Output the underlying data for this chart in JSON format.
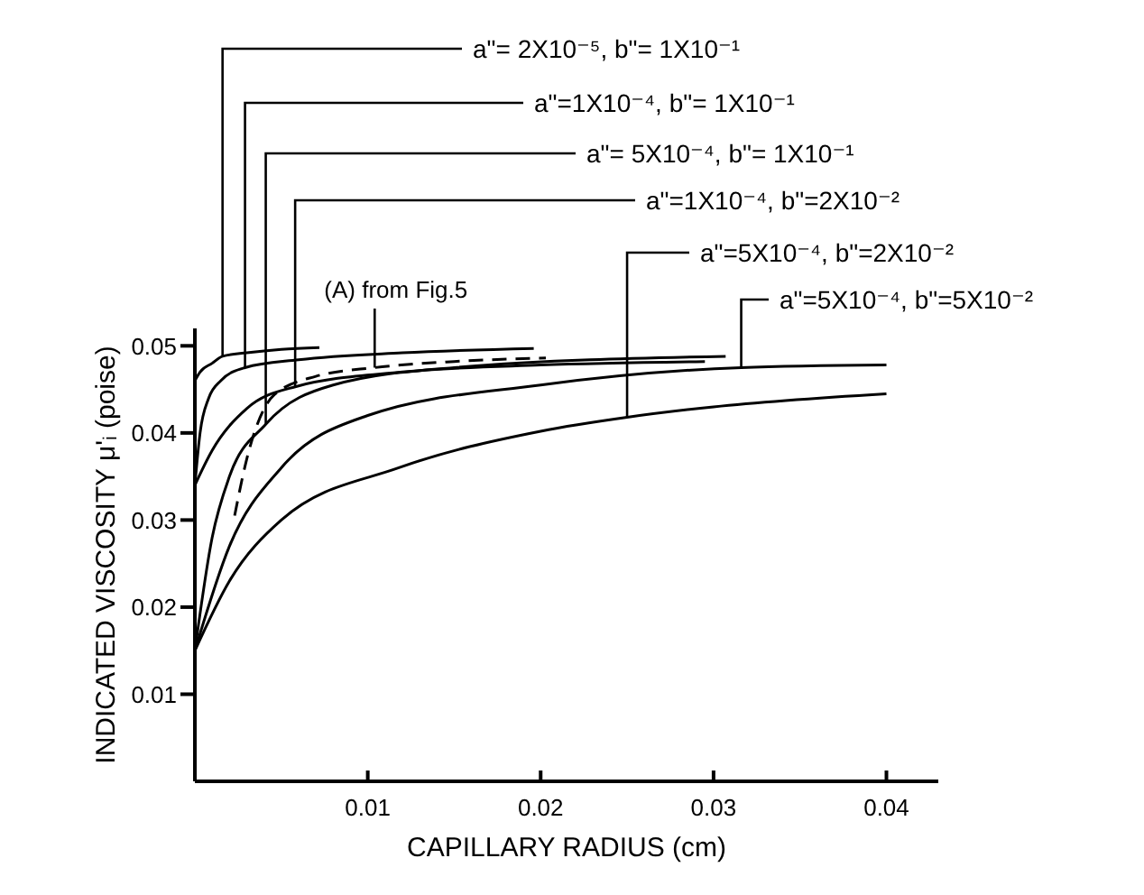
{
  "chart_data": {
    "type": "line",
    "xlabel": "CAPILLARY RADIUS (cm)",
    "ylabel": "INDICATED VISCOSITY μ'ᵢ (poise)",
    "xlim": [
      0,
      0.043
    ],
    "ylim": [
      0,
      0.052
    ],
    "xticks": [
      0.01,
      0.02,
      0.03,
      0.04
    ],
    "yticks": [
      0.01,
      0.02,
      0.03,
      0.04,
      0.05
    ],
    "marker": "none",
    "line_style": "solid",
    "series": [
      {
        "color": "#000000",
        "x": [
          0,
          0.0003,
          0.001,
          0.0016,
          0.003,
          0.005,
          0.0072
        ],
        "values": [
          0.046,
          0.047,
          0.048,
          0.0488,
          0.0492,
          0.0496,
          0.0498
        ]
      },
      {
        "color": "#000000",
        "x": [
          0,
          0.0003,
          0.0008,
          0.0015,
          0.0029,
          0.006,
          0.012,
          0.0196
        ],
        "values": [
          0.034,
          0.04,
          0.044,
          0.046,
          0.0475,
          0.0484,
          0.0492,
          0.0497
        ]
      },
      {
        "color": "#000000",
        "x": [
          0,
          0.001,
          0.002,
          0.0041,
          0.008,
          0.015,
          0.0307
        ],
        "values": [
          0.015,
          0.028,
          0.035,
          0.041,
          0.0455,
          0.0475,
          0.0488
        ]
      },
      {
        "color": "#000000",
        "x": [
          0,
          0.001,
          0.003,
          0.0058,
          0.012,
          0.02,
          0.0295
        ],
        "values": [
          0.034,
          0.038,
          0.0428,
          0.0453,
          0.047,
          0.0478,
          0.0482
        ]
      },
      {
        "color": "#000000",
        "x": [
          0,
          0.002,
          0.005,
          0.0118,
          0.02,
          0.025,
          0.03,
          0.04
        ],
        "values": [
          0.015,
          0.023,
          0.03,
          0.036,
          0.0402,
          0.0418,
          0.043,
          0.0445
        ]
      },
      {
        "color": "#000000",
        "x": [
          0,
          0.002,
          0.005,
          0.01,
          0.02,
          0.0316,
          0.04
        ],
        "values": [
          0.015,
          0.027,
          0.036,
          0.042,
          0.0455,
          0.0475,
          0.0478
        ]
      },
      {
        "color": "#000000",
        "line_style": "dashed",
        "x": [
          0.0023,
          0.003,
          0.0046,
          0.007,
          0.0104,
          0.015,
          0.0203
        ],
        "values": [
          0.0305,
          0.037,
          0.0444,
          0.0465,
          0.0475,
          0.0482,
          0.0486
        ]
      }
    ],
    "annotations": [
      {
        "text": "a\"= 2X10⁻⁵, b\"= 1X10⁻¹",
        "x": 0.0016,
        "y": 0.0488
      },
      {
        "text": "a\"=1X10⁻⁴, b\"= 1X10⁻¹",
        "x": 0.0029,
        "y": 0.0475
      },
      {
        "text": "a\"= 5X10⁻⁴,   b\"= 1X10⁻¹",
        "x": 0.0041,
        "y": 0.041
      },
      {
        "text": "a\"=1X10⁻⁴, b\"=2X10⁻²",
        "x": 0.0058,
        "y": 0.0453
      },
      {
        "text": "a\"=5X10⁻⁴, b\"=2X10⁻²",
        "x": 0.025,
        "y": 0.0418
      },
      {
        "text": "a\"=5X10⁻⁴, b\"=5X10⁻²",
        "x": 0.0316,
        "y": 0.0475
      },
      {
        "text": "(A) from Fig.5",
        "x": 0.0104,
        "y": 0.0475
      }
    ]
  }
}
